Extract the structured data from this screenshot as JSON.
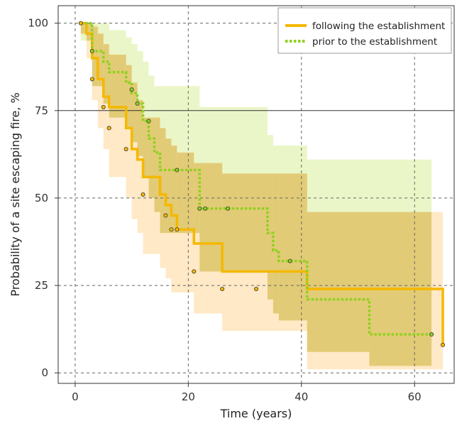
{
  "chart_data": {
    "type": "line",
    "chart_kind": "Kaplan-Meier survival curves with confidence bands",
    "xlabel": "Time (years)",
    "ylabel": "Probability of a site escaping fire, %",
    "xlim": [
      -3,
      67
    ],
    "ylim": [
      -3,
      105
    ],
    "x_ticks": [
      0,
      20,
      40,
      60
    ],
    "y_ticks": [
      0,
      25,
      50,
      75,
      100
    ],
    "grid": "dashed",
    "reference_line_y": 75,
    "legend_position": "top-right",
    "series": [
      {
        "name": "following the establishment",
        "color": "#f5b800",
        "band_color": "#ffe3b8",
        "line_style": "solid",
        "x": [
          1,
          2,
          3,
          4,
          5,
          6,
          9,
          10,
          11,
          12,
          15,
          16,
          17,
          18,
          19,
          21,
          26,
          41,
          65
        ],
        "y": [
          100,
          97,
          90,
          84,
          79,
          76,
          70,
          64,
          61,
          56,
          51,
          48,
          45,
          41,
          41,
          37,
          29,
          24,
          8
        ],
        "band_x": [
          1,
          2,
          3,
          4,
          5,
          6,
          9,
          10,
          11,
          12,
          15,
          16,
          17,
          18,
          19,
          21,
          26,
          41,
          65
        ],
        "band_lower": [
          97,
          90,
          78,
          70,
          64,
          56,
          50,
          44,
          40,
          34,
          30,
          27,
          23,
          23,
          23,
          17,
          12,
          1,
          1
        ],
        "band_upper": [
          100,
          100,
          99,
          97,
          94,
          91,
          88,
          83,
          78,
          73,
          70,
          67,
          65,
          63,
          63,
          60,
          57,
          46,
          46
        ],
        "censored_x": [
          1,
          3,
          5,
          6,
          9,
          12,
          16,
          17,
          18,
          21,
          26,
          32,
          65
        ],
        "censored_y": [
          100,
          84,
          76,
          70,
          64,
          51,
          45,
          41,
          41,
          29,
          24,
          24,
          8
        ]
      },
      {
        "name": "prior to the establishment",
        "color": "#8fd11f",
        "band_color": "#e9f5c4",
        "line_style": "dotted",
        "x": [
          1,
          3,
          5,
          6,
          9,
          10,
          11,
          12,
          13,
          14,
          15,
          22,
          34,
          35,
          36,
          41,
          52,
          63
        ],
        "y": [
          100,
          92,
          89,
          86,
          83,
          80,
          77,
          72,
          67,
          63,
          58,
          47,
          40,
          35,
          32,
          21,
          11,
          11
        ],
        "band_x": [
          1,
          3,
          5,
          6,
          9,
          10,
          11,
          12,
          13,
          14,
          15,
          22,
          34,
          35,
          36,
          41,
          52,
          63
        ],
        "band_lower": [
          95,
          82,
          77,
          73,
          70,
          66,
          62,
          56,
          50,
          46,
          40,
          29,
          21,
          17,
          15,
          6,
          2,
          2
        ],
        "band_upper": [
          100,
          100,
          100,
          98,
          96,
          94,
          92,
          89,
          85,
          82,
          82,
          76,
          68,
          65,
          65,
          61,
          61,
          61
        ],
        "censored_x": [
          3,
          10,
          11,
          13,
          18,
          22,
          23,
          27,
          38,
          63
        ],
        "censored_y": [
          92,
          81,
          77,
          72,
          58,
          47,
          47,
          47,
          32,
          11
        ]
      }
    ]
  }
}
